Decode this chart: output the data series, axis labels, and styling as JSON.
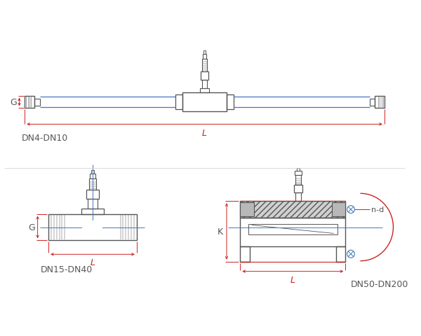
{
  "bg_color": "#ffffff",
  "line_color": "#555555",
  "red_color": "#cc2222",
  "blue_color": "#4477bb",
  "label_dn4": "DN4-DN10",
  "label_dn15": "DN15-DN40",
  "label_dn50": "DN50-DN200",
  "label_G": "G",
  "label_L": "L",
  "label_K": "K",
  "label_nd": "n-d",
  "title_fontsize": 9,
  "dim_fontsize": 9,
  "annot_fontsize": 8
}
